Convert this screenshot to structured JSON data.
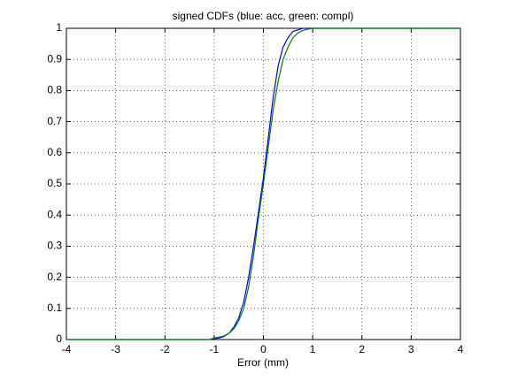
{
  "chart_data": {
    "type": "line",
    "title": "signed CDFs (blue: acc, green: compl)",
    "x_label": "Error (mm)",
    "x": [
      -4,
      -1.1,
      -1,
      -0.9,
      -0.8,
      -0.7,
      -0.6,
      -0.5,
      -0.4,
      -0.3,
      -0.2,
      -0.1,
      0,
      0.1,
      0.2,
      0.3,
      0.4,
      0.5,
      0.6,
      0.7,
      0.8,
      0.9,
      1.0,
      1.1,
      4
    ],
    "series": [
      {
        "color": "#0000ff",
        "values": [
          0,
          0,
          0.003,
          0.005,
          0.01,
          0.02,
          0.04,
          0.07,
          0.12,
          0.2,
          0.3,
          0.41,
          0.52,
          0.65,
          0.78,
          0.88,
          0.94,
          0.97,
          0.99,
          0.995,
          1,
          1,
          1,
          1,
          1
        ]
      },
      {
        "color": "#008000",
        "values": [
          0,
          0,
          0.005,
          0.008,
          0.012,
          0.02,
          0.035,
          0.06,
          0.1,
          0.17,
          0.27,
          0.39,
          0.5,
          0.62,
          0.74,
          0.83,
          0.9,
          0.94,
          0.97,
          0.985,
          0.993,
          0.997,
          1,
          1,
          1
        ]
      }
    ],
    "xlim": [
      -4,
      4
    ],
    "xticks": [
      -4,
      -3,
      -2,
      -1,
      0,
      1,
      2,
      3,
      4
    ],
    "ylim": [
      0,
      1
    ],
    "yticks": [
      0,
      0.1,
      0.2,
      0.3,
      0.4,
      0.5,
      0.6,
      0.7,
      0.8,
      0.9,
      1
    ],
    "grid": true
  }
}
